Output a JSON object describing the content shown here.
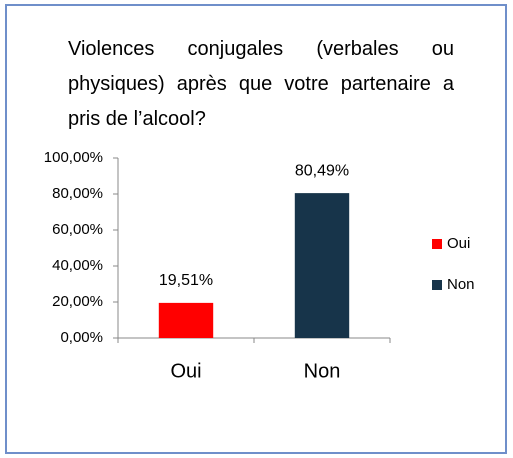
{
  "chart_data": {
    "type": "bar",
    "title": "Violences conjugales (verbales ou physiques) après que votre partenaire a pris de l’alcool?",
    "categories": [
      "Oui",
      "Non"
    ],
    "values": [
      19.51,
      80.49
    ],
    "value_labels": [
      "19,51%",
      "80,49%"
    ],
    "colors": [
      "#ff0000",
      "#17344a"
    ],
    "ylim": [
      0,
      100
    ],
    "yticks": [
      {
        "value": 0,
        "label": "0,00%"
      },
      {
        "value": 20,
        "label": "20,00%"
      },
      {
        "value": 40,
        "label": "40,00%"
      },
      {
        "value": 60,
        "label": "60,00%"
      },
      {
        "value": 80,
        "label": "80,00%"
      },
      {
        "value": 100,
        "label": "100,00%"
      }
    ],
    "legend": "right"
  }
}
